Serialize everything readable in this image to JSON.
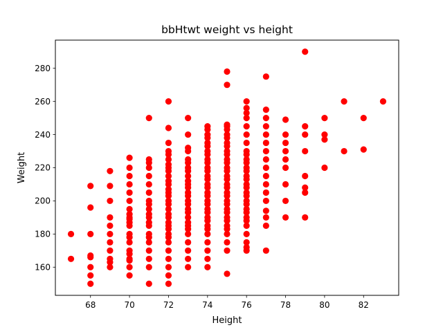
{
  "chart_data": {
    "type": "scatter",
    "title": "bbHtwt weight vs height",
    "xlabel": "Height",
    "ylabel": "Weight",
    "xlim": [
      66.2,
      83.8
    ],
    "ylim": [
      143,
      297
    ],
    "xticks": [
      68,
      70,
      72,
      74,
      76,
      78,
      80,
      82
    ],
    "yticks": [
      160,
      180,
      200,
      220,
      240,
      260,
      280
    ],
    "grid": false,
    "legend": "none",
    "marker_color": "#ff0000",
    "series": [
      {
        "points": [
          [
            67,
            165
          ],
          [
            67,
            180
          ],
          [
            68,
            150
          ],
          [
            68,
            155
          ],
          [
            68,
            160
          ],
          [
            68,
            166
          ],
          [
            68,
            167
          ],
          [
            68,
            180
          ],
          [
            68,
            196
          ],
          [
            68,
            209
          ],
          [
            69,
            160
          ],
          [
            69,
            163
          ],
          [
            69,
            165
          ],
          [
            69,
            170
          ],
          [
            69,
            175
          ],
          [
            69,
            180
          ],
          [
            69,
            185
          ],
          [
            69,
            190
          ],
          [
            69,
            200
          ],
          [
            69,
            209
          ],
          [
            69,
            218
          ],
          [
            70,
            155
          ],
          [
            70,
            160
          ],
          [
            70,
            164
          ],
          [
            70,
            165
          ],
          [
            70,
            168
          ],
          [
            70,
            170
          ],
          [
            70,
            175
          ],
          [
            70,
            178
          ],
          [
            70,
            180
          ],
          [
            70,
            185
          ],
          [
            70,
            187
          ],
          [
            70,
            189
          ],
          [
            70,
            190
          ],
          [
            70,
            192
          ],
          [
            70,
            195
          ],
          [
            70,
            200
          ],
          [
            70,
            205
          ],
          [
            70,
            210
          ],
          [
            70,
            215
          ],
          [
            70,
            220
          ],
          [
            70,
            226
          ],
          [
            71,
            150
          ],
          [
            71,
            160
          ],
          [
            71,
            165
          ],
          [
            71,
            170
          ],
          [
            71,
            175
          ],
          [
            71,
            178
          ],
          [
            71,
            180
          ],
          [
            71,
            185
          ],
          [
            71,
            187
          ],
          [
            71,
            190
          ],
          [
            71,
            192
          ],
          [
            71,
            195
          ],
          [
            71,
            198
          ],
          [
            71,
            200
          ],
          [
            71,
            205
          ],
          [
            71,
            210
          ],
          [
            71,
            215
          ],
          [
            71,
            220
          ],
          [
            71,
            223
          ],
          [
            71,
            225
          ],
          [
            71,
            250
          ],
          [
            72,
            150
          ],
          [
            72,
            155
          ],
          [
            72,
            160
          ],
          [
            72,
            165
          ],
          [
            72,
            170
          ],
          [
            72,
            175
          ],
          [
            72,
            178
          ],
          [
            72,
            180
          ],
          [
            72,
            183
          ],
          [
            72,
            185
          ],
          [
            72,
            187
          ],
          [
            72,
            190
          ],
          [
            72,
            192
          ],
          [
            72,
            195
          ],
          [
            72,
            198
          ],
          [
            72,
            200
          ],
          [
            72,
            203
          ],
          [
            72,
            205
          ],
          [
            72,
            207
          ],
          [
            72,
            210
          ],
          [
            72,
            212
          ],
          [
            72,
            215
          ],
          [
            72,
            218
          ],
          [
            72,
            220
          ],
          [
            72,
            222
          ],
          [
            72,
            225
          ],
          [
            72,
            228
          ],
          [
            72,
            230
          ],
          [
            72,
            235
          ],
          [
            72,
            244
          ],
          [
            72,
            260
          ],
          [
            73,
            160
          ],
          [
            73,
            165
          ],
          [
            73,
            170
          ],
          [
            73,
            175
          ],
          [
            73,
            180
          ],
          [
            73,
            183
          ],
          [
            73,
            185
          ],
          [
            73,
            187
          ],
          [
            73,
            190
          ],
          [
            73,
            193
          ],
          [
            73,
            195
          ],
          [
            73,
            198
          ],
          [
            73,
            200
          ],
          [
            73,
            203
          ],
          [
            73,
            205
          ],
          [
            73,
            208
          ],
          [
            73,
            210
          ],
          [
            73,
            212
          ],
          [
            73,
            215
          ],
          [
            73,
            218
          ],
          [
            73,
            220
          ],
          [
            73,
            223
          ],
          [
            73,
            225
          ],
          [
            73,
            230
          ],
          [
            73,
            232
          ],
          [
            73,
            240
          ],
          [
            73,
            250
          ],
          [
            74,
            160
          ],
          [
            74,
            165
          ],
          [
            74,
            170
          ],
          [
            74,
            175
          ],
          [
            74,
            180
          ],
          [
            74,
            183
          ],
          [
            74,
            185
          ],
          [
            74,
            188
          ],
          [
            74,
            190
          ],
          [
            74,
            193
          ],
          [
            74,
            195
          ],
          [
            74,
            198
          ],
          [
            74,
            200
          ],
          [
            74,
            203
          ],
          [
            74,
            205
          ],
          [
            74,
            208
          ],
          [
            74,
            210
          ],
          [
            74,
            213
          ],
          [
            74,
            215
          ],
          [
            74,
            218
          ],
          [
            74,
            220
          ],
          [
            74,
            223
          ],
          [
            74,
            225
          ],
          [
            74,
            228
          ],
          [
            74,
            230
          ],
          [
            74,
            233
          ],
          [
            74,
            235
          ],
          [
            74,
            238
          ],
          [
            74,
            240
          ],
          [
            74,
            243
          ],
          [
            74,
            245
          ],
          [
            75,
            156
          ],
          [
            75,
            170
          ],
          [
            75,
            175
          ],
          [
            75,
            180
          ],
          [
            75,
            183
          ],
          [
            75,
            185
          ],
          [
            75,
            188
          ],
          [
            75,
            190
          ],
          [
            75,
            193
          ],
          [
            75,
            195
          ],
          [
            75,
            198
          ],
          [
            75,
            200
          ],
          [
            75,
            203
          ],
          [
            75,
            205
          ],
          [
            75,
            208
          ],
          [
            75,
            210
          ],
          [
            75,
            213
          ],
          [
            75,
            215
          ],
          [
            75,
            218
          ],
          [
            75,
            220
          ],
          [
            75,
            223
          ],
          [
            75,
            225
          ],
          [
            75,
            228
          ],
          [
            75,
            230
          ],
          [
            75,
            233
          ],
          [
            75,
            235
          ],
          [
            75,
            238
          ],
          [
            75,
            240
          ],
          [
            75,
            243
          ],
          [
            75,
            245
          ],
          [
            75,
            246
          ],
          [
            75,
            270
          ],
          [
            75,
            278
          ],
          [
            76,
            170
          ],
          [
            76,
            172
          ],
          [
            76,
            175
          ],
          [
            76,
            180
          ],
          [
            76,
            185
          ],
          [
            76,
            188
          ],
          [
            76,
            190
          ],
          [
            76,
            193
          ],
          [
            76,
            195
          ],
          [
            76,
            198
          ],
          [
            76,
            200
          ],
          [
            76,
            203
          ],
          [
            76,
            205
          ],
          [
            76,
            208
          ],
          [
            76,
            210
          ],
          [
            76,
            213
          ],
          [
            76,
            215
          ],
          [
            76,
            218
          ],
          [
            76,
            220
          ],
          [
            76,
            223
          ],
          [
            76,
            225
          ],
          [
            76,
            228
          ],
          [
            76,
            230
          ],
          [
            76,
            235
          ],
          [
            76,
            240
          ],
          [
            76,
            245
          ],
          [
            76,
            250
          ],
          [
            76,
            253
          ],
          [
            76,
            256
          ],
          [
            76,
            260
          ],
          [
            77,
            170
          ],
          [
            77,
            185
          ],
          [
            77,
            190
          ],
          [
            77,
            194
          ],
          [
            77,
            200
          ],
          [
            77,
            205
          ],
          [
            77,
            210
          ],
          [
            77,
            215
          ],
          [
            77,
            220
          ],
          [
            77,
            225
          ],
          [
            77,
            230
          ],
          [
            77,
            235
          ],
          [
            77,
            240
          ],
          [
            77,
            245
          ],
          [
            77,
            250
          ],
          [
            77,
            255
          ],
          [
            77,
            275
          ],
          [
            78,
            190
          ],
          [
            78,
            200
          ],
          [
            78,
            210
          ],
          [
            78,
            220
          ],
          [
            78,
            225
          ],
          [
            78,
            230
          ],
          [
            78,
            235
          ],
          [
            78,
            240
          ],
          [
            78,
            249
          ],
          [
            79,
            190
          ],
          [
            79,
            205
          ],
          [
            79,
            208
          ],
          [
            79,
            215
          ],
          [
            79,
            230
          ],
          [
            79,
            240
          ],
          [
            79,
            245
          ],
          [
            79,
            290
          ],
          [
            80,
            220
          ],
          [
            80,
            237
          ],
          [
            80,
            240
          ],
          [
            80,
            250
          ],
          [
            81,
            230
          ],
          [
            81,
            260
          ],
          [
            82,
            231
          ],
          [
            82,
            250
          ],
          [
            83,
            260
          ]
        ]
      }
    ]
  }
}
